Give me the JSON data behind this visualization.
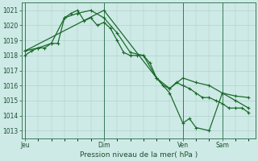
{
  "background_color": "#ceeae6",
  "plot_bg_color": "#ceeae6",
  "grid_color": "#a8cdc8",
  "line_color": "#1a6b2a",
  "xlabel": "Pression niveau de la mer( hPa )",
  "ylim": [
    1012.5,
    1021.5
  ],
  "yticks": [
    1013,
    1014,
    1015,
    1016,
    1017,
    1018,
    1019,
    1020,
    1021
  ],
  "xtick_labels": [
    "Jeu",
    "Dim",
    "Ven",
    "Sam"
  ],
  "xtick_positions": [
    0,
    48,
    96,
    120
  ],
  "vline_positions": [
    0,
    48,
    96,
    120
  ],
  "xlim": [
    -2,
    140
  ],
  "series1_x": [
    0,
    4,
    8,
    12,
    16,
    20,
    24,
    28,
    32,
    36,
    40,
    44,
    48,
    52,
    56,
    60,
    64,
    68,
    72,
    76,
    80,
    84,
    88,
    92,
    96,
    100,
    104,
    108,
    112,
    116,
    120,
    124,
    128,
    132,
    136
  ],
  "series1_y": [
    1018.0,
    1018.3,
    1018.5,
    1018.5,
    1018.8,
    1018.8,
    1020.5,
    1020.8,
    1021.0,
    1020.3,
    1020.5,
    1020.0,
    1020.2,
    1019.8,
    1019.0,
    1018.2,
    1018.0,
    1018.0,
    1018.0,
    1017.5,
    1016.5,
    1016.0,
    1015.8,
    1016.2,
    1016.0,
    1015.8,
    1015.5,
    1015.2,
    1015.2,
    1015.0,
    1014.8,
    1014.5,
    1014.5,
    1014.5,
    1014.2
  ],
  "series2_x": [
    0,
    8,
    16,
    24,
    32,
    40,
    48,
    56,
    64,
    72,
    80,
    88,
    96,
    104,
    112,
    120,
    128,
    136
  ],
  "series2_y": [
    1018.3,
    1018.5,
    1018.8,
    1020.5,
    1020.8,
    1021.0,
    1020.5,
    1019.5,
    1018.2,
    1018.0,
    1016.5,
    1015.8,
    1016.5,
    1016.2,
    1016.0,
    1015.5,
    1015.3,
    1015.2
  ],
  "series3_x": [
    0,
    48,
    80,
    88,
    96,
    100,
    104,
    112,
    120,
    128,
    136
  ],
  "series3_y": [
    1018.3,
    1021.0,
    1016.5,
    1015.5,
    1013.5,
    1013.8,
    1013.2,
    1013.0,
    1015.5,
    1015.0,
    1014.5
  ]
}
